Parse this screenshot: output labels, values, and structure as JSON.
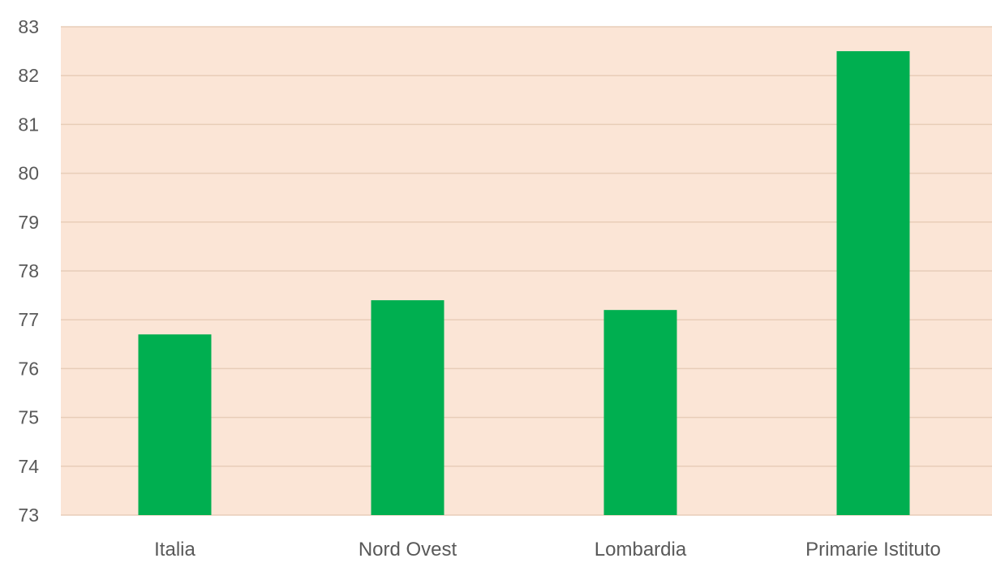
{
  "chart_data": {
    "type": "bar",
    "title": "",
    "xlabel": "",
    "ylabel": "",
    "categories": [
      "Italia",
      "Nord Ovest",
      "Lombardia",
      "Primarie Istituto"
    ],
    "values": [
      76.7,
      77.4,
      77.2,
      82.5
    ],
    "ylim": [
      73,
      83
    ],
    "yticks": [
      "73",
      "74",
      "75",
      "76",
      "77",
      "78",
      "79",
      "80",
      "81",
      "82",
      "83"
    ],
    "grid": true,
    "legend": "none",
    "colors": {
      "bar": "#00AF50",
      "plot_background": "#FBE5D6",
      "gridline": "#E8CDB8",
      "text": "#595959"
    }
  }
}
